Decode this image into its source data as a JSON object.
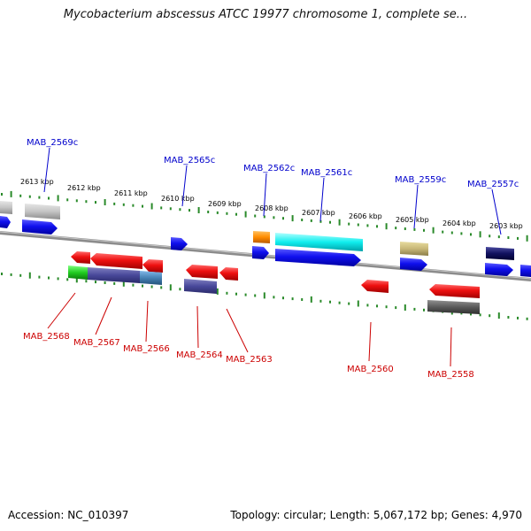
{
  "title": "Mycobacterium abscessus ATCC 19977 chromosome 1, complete se...",
  "footer": {
    "accession": "Accession: NC_010397",
    "summary": "Topology: circular; Length: 5,067,172 bp; Genes: 4,970"
  },
  "colors": {
    "backbone": "#8c8c8c",
    "tick": "#2a8a2a",
    "forward_label": "#0000cc",
    "reverse_label": "#cc0000"
  },
  "outer_ruler": [
    "2613 kbp",
    "2612 kbp",
    "2611 kbp",
    "2610 kbp",
    "2609 kbp",
    "2608 kbp",
    "2607 kbp",
    "2606 kbp",
    "2605 kbp",
    "2604 kbp",
    "2603 kbp"
  ],
  "forward_labels": [
    "MAB_2569c",
    "MAB_2565c",
    "MAB_2562c",
    "MAB_2561c",
    "MAB_2559c",
    "MAB_2557c"
  ],
  "reverse_labels": [
    "MAB_2568",
    "MAB_2567",
    "MAB_2566",
    "MAB_2564",
    "MAB_2563",
    "MAB_2560",
    "MAB_2558"
  ]
}
